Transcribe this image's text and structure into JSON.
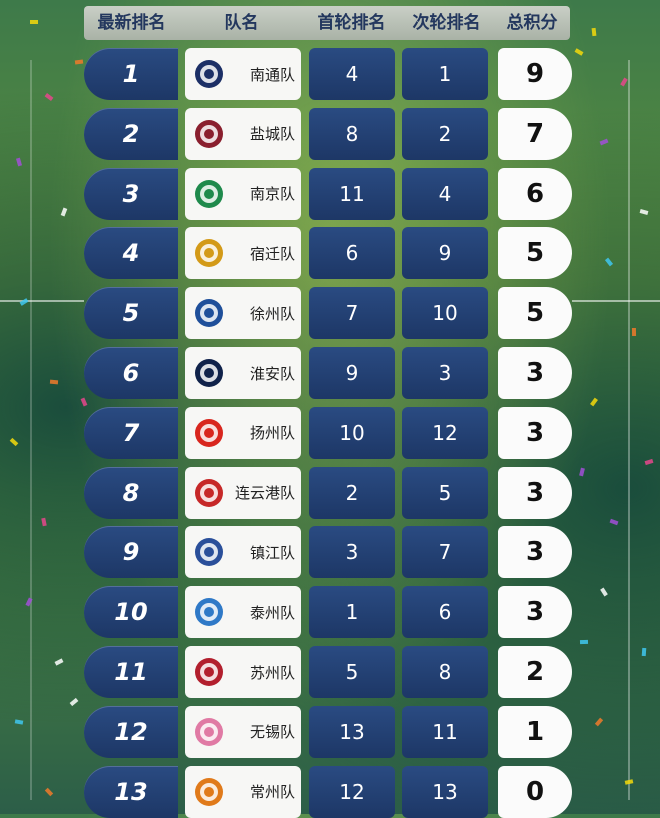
{
  "header": {
    "rank": "最新排名",
    "team": "队名",
    "first_round": "首轮排名",
    "second_round": "次轮排名",
    "total": "总积分"
  },
  "rows": [
    {
      "rank": "1",
      "team": "南通队",
      "first": "4",
      "second": "1",
      "total": "9",
      "logo_icon": "nantong-logo-icon",
      "logo_color": "#1c2f66"
    },
    {
      "rank": "2",
      "team": "盐城队",
      "first": "8",
      "second": "2",
      "total": "7",
      "logo_icon": "yancheng-logo-icon",
      "logo_color": "#8a1f2e"
    },
    {
      "rank": "3",
      "team": "南京队",
      "first": "11",
      "second": "4",
      "total": "6",
      "logo_icon": "nanjing-logo-icon",
      "logo_color": "#1f8a4c"
    },
    {
      "rank": "4",
      "team": "宿迁队",
      "first": "6",
      "second": "9",
      "total": "5",
      "logo_icon": "suqian-logo-icon",
      "logo_color": "#d39a18"
    },
    {
      "rank": "5",
      "team": "徐州队",
      "first": "7",
      "second": "10",
      "total": "5",
      "logo_icon": "xuzhou-logo-icon",
      "logo_color": "#1f4f9a"
    },
    {
      "rank": "6",
      "team": "淮安队",
      "first": "9",
      "second": "3",
      "total": "3",
      "logo_icon": "huaian-logo-icon",
      "logo_color": "#10224a"
    },
    {
      "rank": "7",
      "team": "扬州队",
      "first": "10",
      "second": "12",
      "total": "3",
      "logo_icon": "yangzhou-logo-icon",
      "logo_color": "#d8261e"
    },
    {
      "rank": "8",
      "team": "连云港队",
      "first": "2",
      "second": "5",
      "total": "3",
      "logo_icon": "lianyungang-logo-icon",
      "logo_color": "#c62828"
    },
    {
      "rank": "9",
      "team": "镇江队",
      "first": "3",
      "second": "7",
      "total": "3",
      "logo_icon": "zhenjiang-logo-icon",
      "logo_color": "#2a4f9a"
    },
    {
      "rank": "10",
      "team": "泰州队",
      "first": "1",
      "second": "6",
      "total": "3",
      "logo_icon": "taizhou-logo-icon",
      "logo_color": "#2f79c7"
    },
    {
      "rank": "11",
      "team": "苏州队",
      "first": "5",
      "second": "8",
      "total": "2",
      "logo_icon": "suzhou-logo-icon",
      "logo_color": "#b21f2d"
    },
    {
      "rank": "12",
      "team": "无锡队",
      "first": "13",
      "second": "11",
      "total": "1",
      "logo_icon": "wuxi-logo-icon",
      "logo_color": "#e07aa4"
    },
    {
      "rank": "13",
      "team": "常州队",
      "first": "12",
      "second": "13",
      "total": "0",
      "logo_icon": "changzhou-logo-icon",
      "logo_color": "#e07a1a"
    }
  ]
}
